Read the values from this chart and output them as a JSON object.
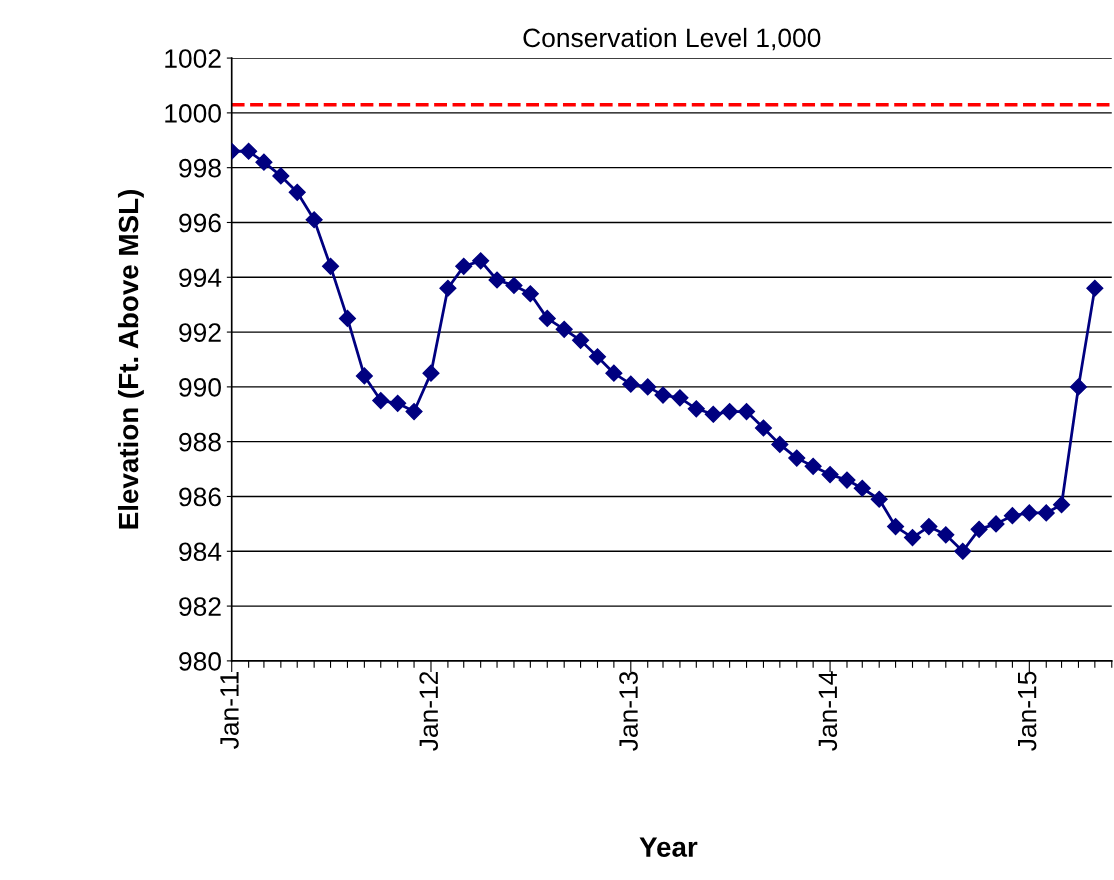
{
  "chart_data": {
    "type": "line",
    "title": "Conservation Level 1,000",
    "xlabel": "Year",
    "ylabel": "Elevation (Ft. Above MSL)",
    "x": [
      "2011-01",
      "2011-02",
      "2011-03",
      "2011-04",
      "2011-05",
      "2011-06",
      "2011-07",
      "2011-08",
      "2011-09",
      "2011-10",
      "2011-11",
      "2011-12",
      "2012-01",
      "2012-02",
      "2012-03",
      "2012-04",
      "2012-05",
      "2012-06",
      "2012-07",
      "2012-08",
      "2012-09",
      "2012-10",
      "2012-11",
      "2012-12",
      "2013-01",
      "2013-02",
      "2013-03",
      "2013-04",
      "2013-05",
      "2013-06",
      "2013-07",
      "2013-08",
      "2013-09",
      "2013-10",
      "2013-11",
      "2013-12",
      "2014-01",
      "2014-02",
      "2014-03",
      "2014-04",
      "2014-05",
      "2014-06",
      "2014-07",
      "2014-08",
      "2014-09",
      "2014-10",
      "2014-11",
      "2014-12",
      "2015-01",
      "2015-02",
      "2015-03",
      "2015-04",
      "2015-05"
    ],
    "series": [
      {
        "color": "#000080",
        "values": [
          998.6,
          998.6,
          998.2,
          997.7,
          997.1,
          996.1,
          994.4,
          992.5,
          990.4,
          989.5,
          989.4,
          989.1,
          990.5,
          993.6,
          994.4,
          994.6,
          993.9,
          993.7,
          993.4,
          992.5,
          992.1,
          991.7,
          991.1,
          990.5,
          990.1,
          990.0,
          989.7,
          989.6,
          989.2,
          989.0,
          989.1,
          989.1,
          988.5,
          987.9,
          987.4,
          987.1,
          986.8,
          986.6,
          986.3,
          985.9,
          984.9,
          984.5,
          984.9,
          984.6,
          984.0,
          984.8,
          985.0,
          985.3,
          985.4,
          985.4,
          985.7,
          990.0,
          993.6
        ]
      }
    ],
    "ylim": [
      980,
      1002
    ],
    "yticks": [
      980,
      982,
      984,
      986,
      988,
      990,
      992,
      994,
      996,
      998,
      1000,
      1002
    ],
    "xlim": [
      "2011-01-01",
      "2015-06-01"
    ],
    "xticks": [
      {
        "value": "2011-01",
        "label": "Jan-11"
      },
      {
        "value": "2011-02",
        "label": null
      },
      {
        "value": "2011-03",
        "label": null
      },
      {
        "value": "2011-04",
        "label": null
      },
      {
        "value": "2011-05",
        "label": null
      },
      {
        "value": "2011-06",
        "label": null
      },
      {
        "value": "2011-07",
        "label": null
      },
      {
        "value": "2011-08",
        "label": null
      },
      {
        "value": "2011-09",
        "label": null
      },
      {
        "value": "2011-10",
        "label": null
      },
      {
        "value": "2011-11",
        "label": null
      },
      {
        "value": "2011-12",
        "label": null
      },
      {
        "value": "2012-01",
        "label": "Jan-12"
      },
      {
        "value": "2012-02",
        "label": null
      },
      {
        "value": "2012-03",
        "label": null
      },
      {
        "value": "2012-04",
        "label": null
      },
      {
        "value": "2012-05",
        "label": null
      },
      {
        "value": "2012-06",
        "label": null
      },
      {
        "value": "2012-07",
        "label": null
      },
      {
        "value": "2012-08",
        "label": null
      },
      {
        "value": "2012-09",
        "label": null
      },
      {
        "value": "2012-10",
        "label": null
      },
      {
        "value": "2012-11",
        "label": null
      },
      {
        "value": "2012-12",
        "label": null
      },
      {
        "value": "2013-01",
        "label": "Jan-13"
      },
      {
        "value": "2013-02",
        "label": null
      },
      {
        "value": "2013-03",
        "label": null
      },
      {
        "value": "2013-04",
        "label": null
      },
      {
        "value": "2013-05",
        "label": null
      },
      {
        "value": "2013-06",
        "label": null
      },
      {
        "value": "2013-07",
        "label": null
      },
      {
        "value": "2013-08",
        "label": null
      },
      {
        "value": "2013-09",
        "label": null
      },
      {
        "value": "2013-10",
        "label": null
      },
      {
        "value": "2013-11",
        "label": null
      },
      {
        "value": "2013-12",
        "label": null
      },
      {
        "value": "2014-01",
        "label": "Jan-14"
      },
      {
        "value": "2014-02",
        "label": null
      },
      {
        "value": "2014-03",
        "label": null
      },
      {
        "value": "2014-04",
        "label": null
      },
      {
        "value": "2014-05",
        "label": null
      },
      {
        "value": "2014-06",
        "label": null
      },
      {
        "value": "2014-07",
        "label": null
      },
      {
        "value": "2014-08",
        "label": null
      },
      {
        "value": "2014-09",
        "label": null
      },
      {
        "value": "2014-10",
        "label": null
      },
      {
        "value": "2014-11",
        "label": null
      },
      {
        "value": "2014-12",
        "label": null
      },
      {
        "value": "2015-01",
        "label": "Jan-15"
      },
      {
        "value": "2015-02",
        "label": null
      },
      {
        "value": "2015-03",
        "label": null
      },
      {
        "value": "2015-04",
        "label": null
      },
      {
        "value": "2015-05",
        "label": null
      },
      {
        "value": "2015-06",
        "label": null
      }
    ],
    "ref_lines": [
      {
        "axis": "y",
        "value": 1000.3,
        "color": "#ff0000",
        "line_style": "dashed"
      }
    ],
    "grid": "y",
    "legend": false,
    "marker": "diamond",
    "line_style": "solid"
  }
}
